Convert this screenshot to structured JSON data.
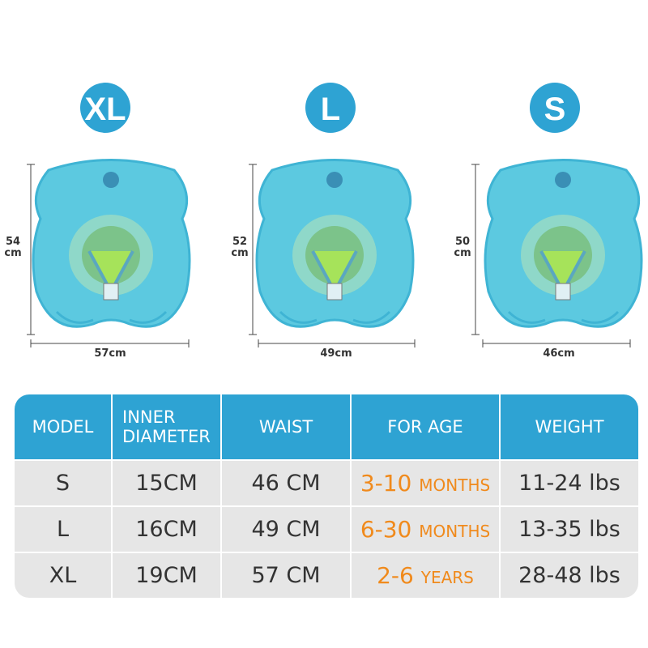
{
  "sizes": [
    {
      "label": "XL",
      "height": {
        "value": "54",
        "unit": "cm"
      },
      "width": "57cm"
    },
    {
      "label": "L",
      "height": {
        "value": "52",
        "unit": "cm"
      },
      "width": "49cm"
    },
    {
      "label": "S",
      "height": {
        "value": "50",
        "unit": "cm"
      },
      "width": "46cm"
    }
  ],
  "table": {
    "header": [
      "MODEL",
      "INNER DIAMETER",
      "WAIST",
      "FOR AGE",
      "WEIGHT"
    ],
    "rows": [
      [
        "S",
        "15CM",
        "46 CM",
        {
          "number": "3-10",
          "unit": "MONTHS"
        },
        "11-24 lbs"
      ],
      [
        "L",
        "16CM",
        "49 CM",
        {
          "number": "6-30",
          "unit": "MONTHS"
        },
        "13-35 lbs"
      ],
      [
        "XL",
        "19CM",
        "57 CM",
        {
          "number": "2-6",
          "unit": "YEARS"
        },
        "28-48 lbs"
      ]
    ]
  }
}
